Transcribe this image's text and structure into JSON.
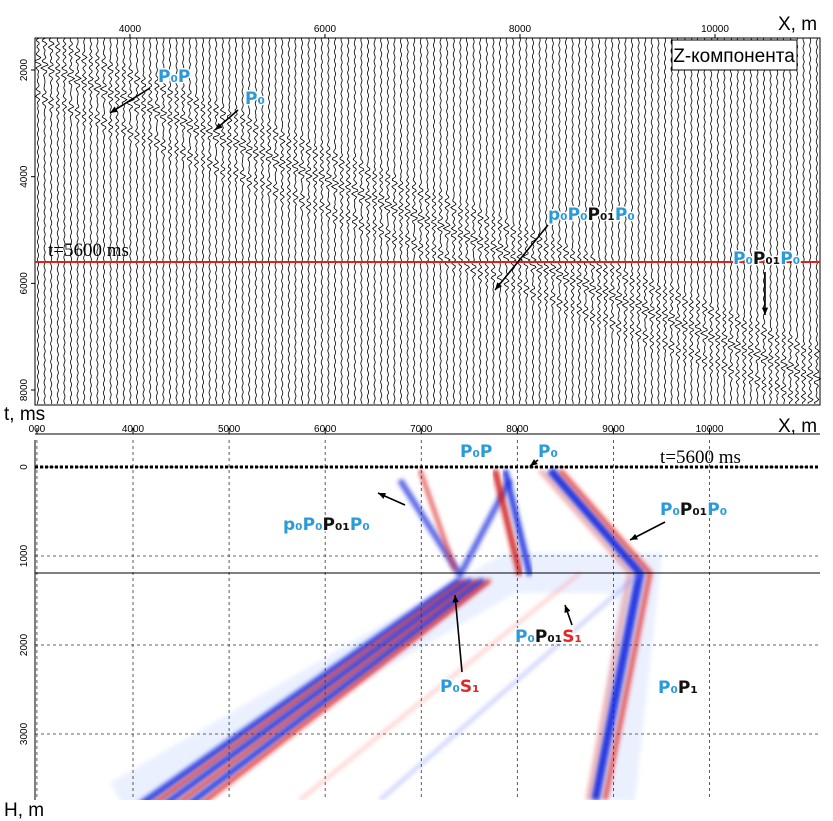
{
  "top_panel": {
    "x_axis_label": "X, m",
    "y_axis_label": "t, ms",
    "xlim": [
      3026,
      11077
    ],
    "ylim": [
      1400,
      8281
    ],
    "xticks": [
      4000,
      6000,
      8000,
      10000
    ],
    "yticks": [
      2000,
      4000,
      6000,
      8000
    ],
    "component_label": "Z-компонента",
    "time_marker": {
      "value": 5600,
      "label": "t=5600 ms"
    },
    "annotations": [
      {
        "parts": [
          {
            "text": "P₀P",
            "color": "#2a9ad8"
          }
        ]
      },
      {
        "parts": [
          {
            "text": "P₀",
            "color": "#2a9ad8"
          }
        ]
      },
      {
        "parts": [
          {
            "text": "p₀P₀",
            "color": "#2a9ad8"
          },
          {
            "text": "P₀₁",
            "color": "#111111"
          },
          {
            "text": "P₀",
            "color": "#2a9ad8"
          }
        ]
      },
      {
        "parts": [
          {
            "text": "P₀",
            "color": "#2a9ad8"
          },
          {
            "text": "P₀₁",
            "color": "#111111"
          },
          {
            "text": "P₀",
            "color": "#2a9ad8"
          }
        ]
      }
    ]
  },
  "bottom_panel": {
    "x_axis_label": "X, m",
    "y_axis_label": "H, m",
    "xlim": [
      2980,
      11150
    ],
    "ylim": [
      -303,
      3742
    ],
    "xticks": [
      {
        "value": 3000,
        "label": "000"
      },
      4000,
      5000,
      6000,
      7000,
      8000,
      9000,
      10000
    ],
    "yticks": [
      0,
      1000,
      2000,
      3000
    ],
    "time_label": "t=5600 ms",
    "annotations": [
      {
        "parts": [
          {
            "text": "P₀P",
            "color": "#2a9ad8"
          }
        ]
      },
      {
        "parts": [
          {
            "text": "P₀",
            "color": "#2a9ad8"
          }
        ]
      },
      {
        "parts": [
          {
            "text": "p₀P₀",
            "color": "#2a9ad8"
          },
          {
            "text": "P₀₁",
            "color": "#111111"
          },
          {
            "text": "P₀",
            "color": "#2a9ad8"
          }
        ]
      },
      {
        "parts": [
          {
            "text": "P₀",
            "color": "#2a9ad8"
          },
          {
            "text": "P₀₁",
            "color": "#111111"
          },
          {
            "text": "P₀",
            "color": "#2a9ad8"
          }
        ]
      },
      {
        "parts": [
          {
            "text": "P₀",
            "color": "#2a9ad8"
          },
          {
            "text": "S₁",
            "color": "#e02828"
          }
        ]
      },
      {
        "parts": [
          {
            "text": "P₀",
            "color": "#2a9ad8"
          },
          {
            "text": "P₀₁",
            "color": "#111111"
          },
          {
            "text": "S₁",
            "color": "#e02828"
          }
        ]
      },
      {
        "parts": [
          {
            "text": "P₀",
            "color": "#2a9ad8"
          },
          {
            "text": "P₁",
            "color": "#111111"
          }
        ]
      }
    ]
  }
}
